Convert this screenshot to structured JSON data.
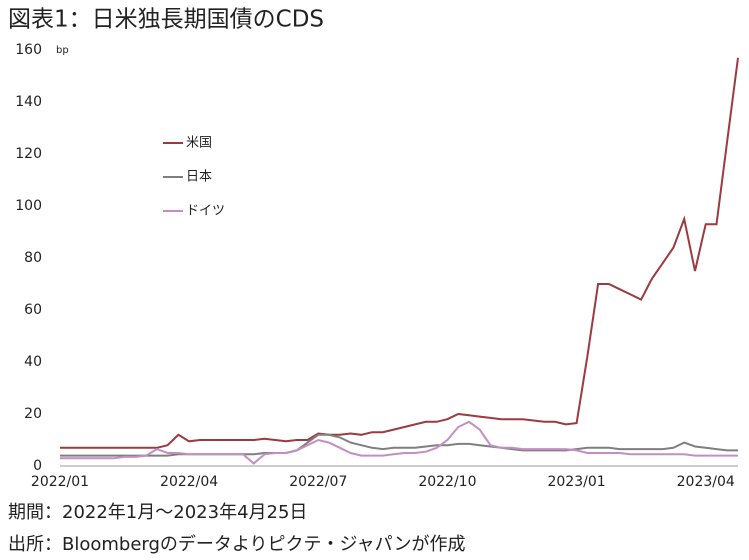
{
  "chart_data": {
    "type": "line",
    "title": "図表1：日米独長期国債のCDS",
    "y_unit": "bp",
    "categories": [
      "2022/01",
      null,
      null,
      null,
      null,
      null,
      null,
      null,
      null,
      null,
      null,
      null,
      "2022/04",
      null,
      null,
      null,
      null,
      null,
      null,
      null,
      null,
      null,
      null,
      null,
      "2022/07",
      null,
      null,
      null,
      null,
      null,
      null,
      null,
      null,
      null,
      null,
      null,
      "2022/10",
      null,
      null,
      null,
      null,
      null,
      null,
      null,
      null,
      null,
      null,
      null,
      "2023/01",
      null,
      null,
      null,
      null,
      null,
      null,
      null,
      null,
      null,
      null,
      null,
      "2023/04",
      null,
      null,
      null
    ],
    "series": [
      {
        "name": "米国",
        "color": "#9b3a3f",
        "values": [
          7,
          7,
          7,
          7,
          7,
          7,
          7,
          7,
          7,
          7,
          8,
          12,
          9.5,
          10,
          10,
          10,
          10,
          10,
          10,
          10.5,
          10,
          9.5,
          10,
          10,
          12.5,
          12,
          12,
          12.5,
          12,
          13,
          13,
          14,
          15,
          16,
          17,
          17,
          18,
          20,
          19.5,
          19,
          18.5,
          18,
          18,
          18,
          17.5,
          17,
          17,
          16,
          16.5,
          42,
          70,
          70,
          68,
          66,
          64,
          72,
          78,
          84,
          95,
          75,
          93,
          93,
          125,
          157
        ]
      },
      {
        "name": "日本",
        "color": "#7f7f7f",
        "values": [
          4,
          4,
          4,
          4,
          4,
          4,
          4,
          4,
          4,
          4,
          4,
          4.5,
          4.5,
          4.5,
          4.5,
          4.5,
          4.5,
          4.5,
          4.5,
          5,
          5,
          5,
          6,
          9,
          12,
          12,
          11,
          9,
          8,
          7,
          6.5,
          7,
          7,
          7,
          7.5,
          8,
          8,
          8.5,
          8.5,
          8,
          7.5,
          7,
          6.5,
          6,
          6,
          6,
          6,
          6,
          6.5,
          7,
          7,
          7,
          6.5,
          6.5,
          6.5,
          6.5,
          6.5,
          7,
          9,
          7.5,
          7,
          6.5,
          6,
          6
        ]
      },
      {
        "name": "ドイツ",
        "color": "#c38fc3",
        "values": [
          3,
          3,
          3,
          3,
          3,
          3,
          3.5,
          3.5,
          4,
          6.5,
          5,
          5,
          4.5,
          4.5,
          4.5,
          4.5,
          4.5,
          4.5,
          1,
          4.5,
          5,
          5,
          6,
          8,
          10,
          9,
          7,
          5,
          4,
          4,
          4,
          4.5,
          5,
          5,
          5.5,
          7,
          10,
          15,
          17,
          14,
          8,
          7,
          7,
          6.5,
          6.5,
          6.5,
          6.5,
          6.5,
          6,
          5,
          5,
          5,
          5,
          4.5,
          4.5,
          4.5,
          4.5,
          4.5,
          4.5,
          4,
          4,
          4,
          4,
          4
        ]
      }
    ],
    "ylim": [
      0,
      160
    ],
    "yticks": [
      0,
      20,
      40,
      60,
      80,
      100,
      120,
      140,
      160
    ],
    "grid": false,
    "notes": [
      "期間：2022年1月～2023年4月25日",
      "出所：Bloombergのデータよりピクテ・ジャパンが作成"
    ]
  }
}
